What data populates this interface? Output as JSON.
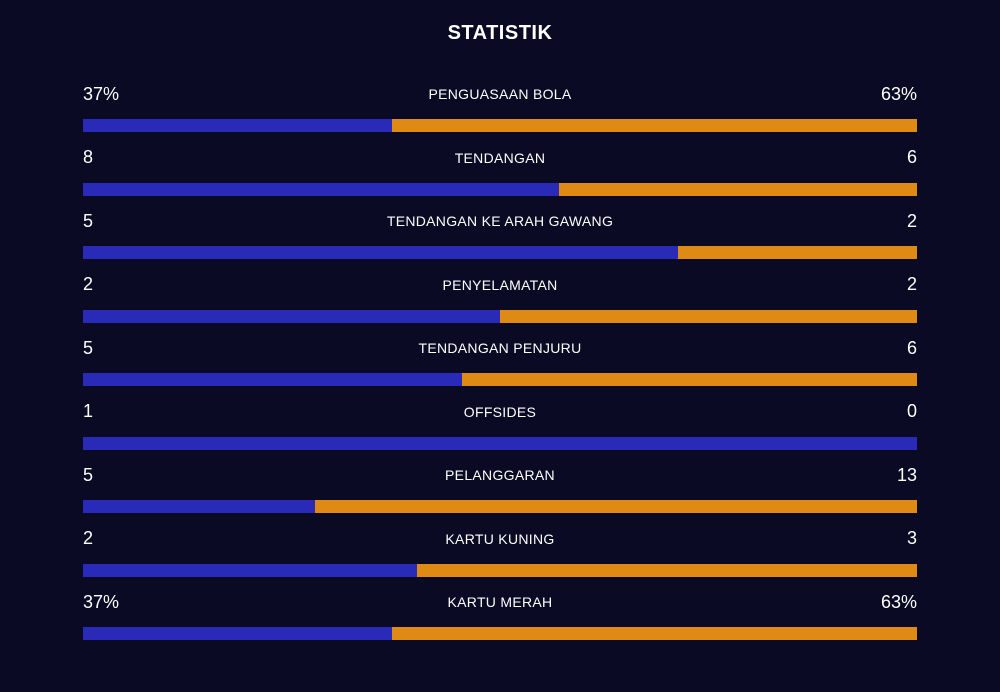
{
  "title": "STATISTIK",
  "colors": {
    "background": "#0a0a24",
    "home": "#2a2ab8",
    "away": "#e08a16"
  },
  "stats": [
    {
      "label": "PENGUASAAN BOLA",
      "home": "37%",
      "away": "63%",
      "home_fraction": 0.37
    },
    {
      "label": "TENDANGAN",
      "home": "8",
      "away": "6",
      "home_fraction": 0.571
    },
    {
      "label": "TENDANGAN KE ARAH GAWANG",
      "home": "5",
      "away": "2",
      "home_fraction": 0.714
    },
    {
      "label": "PENYELAMATAN",
      "home": "2",
      "away": "2",
      "home_fraction": 0.5
    },
    {
      "label": "TENDANGAN PENJURU",
      "home": "5",
      "away": "6",
      "home_fraction": 0.455
    },
    {
      "label": "OFFSIDES",
      "home": "1",
      "away": "0",
      "home_fraction": 1.0
    },
    {
      "label": "PELANGGARAN",
      "home": "5",
      "away": "13",
      "home_fraction": 0.278
    },
    {
      "label": "KARTU KUNING",
      "home": "2",
      "away": "3",
      "home_fraction": 0.4
    },
    {
      "label": "KARTU MERAH",
      "home": "37%",
      "away": "63%",
      "home_fraction": 0.37
    }
  ]
}
